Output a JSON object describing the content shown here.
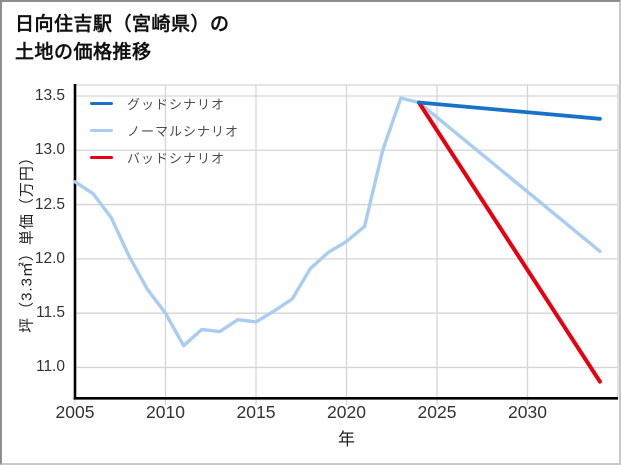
{
  "title": {
    "line1": "日向住吉駅（宮崎県）の",
    "line2": "土地の価格推移"
  },
  "chart_data": {
    "type": "line",
    "title": "日向住吉駅（宮崎県）の土地の価格推移",
    "xlabel": "年",
    "ylabel": "坪（3.3㎡）単価（万円）",
    "xlim": [
      2005,
      2035
    ],
    "ylim": [
      10.73,
      13.6
    ],
    "x_ticks": [
      2005,
      2010,
      2015,
      2020,
      2025,
      2030
    ],
    "y_ticks": [
      11.0,
      11.5,
      12.0,
      12.5,
      13.0,
      13.5
    ],
    "grid": true,
    "grid_color": "#d5d5d5",
    "axis_color": "#000000",
    "legend_position": "upper-left",
    "series": [
      {
        "name": "グッドシナリオ",
        "color": "#1673c8",
        "x": [
          2024,
          2034
        ],
        "values": [
          13.44,
          13.29
        ]
      },
      {
        "name": "ノーマルシナリオ",
        "color": "#a9cdf2",
        "x": [
          2005,
          2006,
          2007,
          2008,
          2009,
          2010,
          2011,
          2012,
          2013,
          2014,
          2015,
          2016,
          2017,
          2018,
          2019,
          2020,
          2021,
          2022,
          2023,
          2024,
          2034
        ],
        "values": [
          12.71,
          12.6,
          12.38,
          12.02,
          11.72,
          11.5,
          11.2,
          11.35,
          11.33,
          11.44,
          11.42,
          11.52,
          11.63,
          11.91,
          12.06,
          12.16,
          12.3,
          13.0,
          13.48,
          13.44,
          12.07
        ]
      },
      {
        "name": "バッドシナリオ",
        "color": "#e9000e",
        "x": [
          2024,
          2034
        ],
        "values": [
          13.44,
          10.87
        ]
      }
    ]
  }
}
